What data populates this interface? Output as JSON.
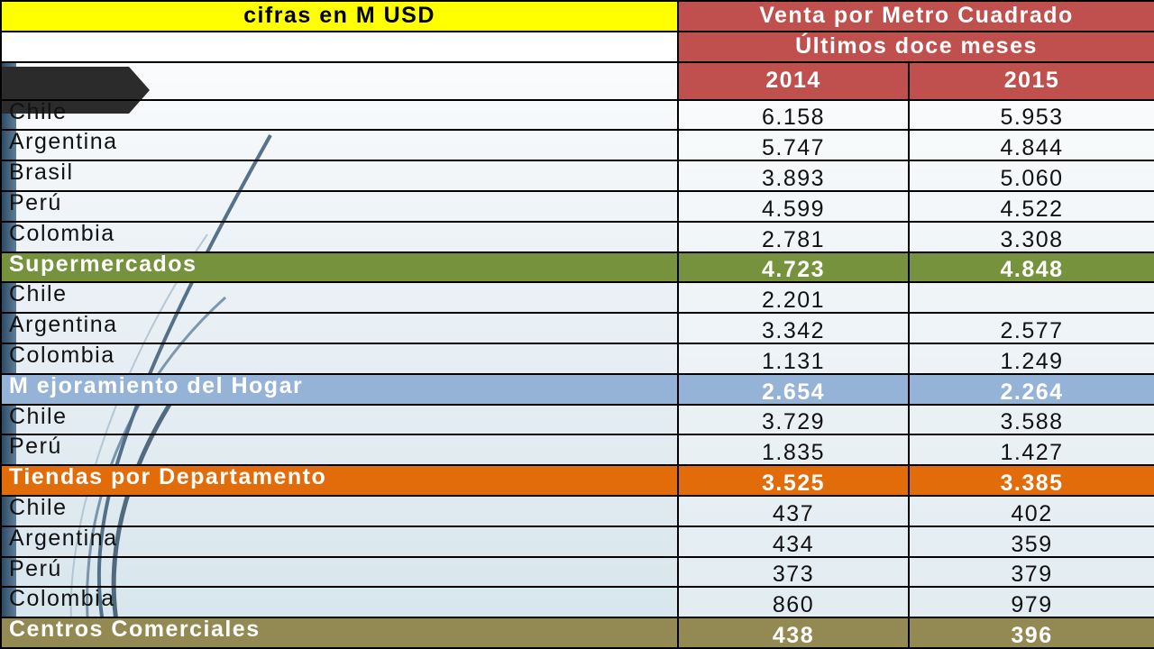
{
  "header": {
    "units_label": "cifras en M USD",
    "title_line1": "Venta por Metro Cuadrado",
    "title_line2": "Últimos doce meses",
    "year_a": "2014",
    "year_b": "2015"
  },
  "colors": {
    "header_yellow": "#ffff00",
    "header_red": "#c0504d",
    "supermercados": "#76923c",
    "mejoramiento": "#95b3d7",
    "tiendas": "#e36c0a",
    "centros": "#938953"
  },
  "rows": [
    {
      "name": "Chile",
      "v2014": "6.158",
      "v2015": "5.953",
      "kind": "data"
    },
    {
      "name": "Argentina",
      "v2014": "5.747",
      "v2015": "4.844",
      "kind": "data"
    },
    {
      "name": "Brasil",
      "v2014": "3.893",
      "v2015": "5.060",
      "kind": "data"
    },
    {
      "name": "Perú",
      "v2014": "4.599",
      "v2015": "4.522",
      "kind": "data"
    },
    {
      "name": "Colombia",
      "v2014": "2.781",
      "v2015": "3.308",
      "kind": "data"
    },
    {
      "name": "Supermercados",
      "v2014": "4.723",
      "v2015": "4.848",
      "kind": "total",
      "color": "#76923c"
    },
    {
      "name": "Chile",
      "v2014": "2.201",
      "v2015": "",
      "kind": "data"
    },
    {
      "name": "Argentina",
      "v2014": "3.342",
      "v2015": "2.577",
      "kind": "data"
    },
    {
      "name": "Colombia",
      "v2014": "1.131",
      "v2015": "1.249",
      "kind": "data"
    },
    {
      "name": "M ejoramiento del Hogar",
      "v2014": "2.654",
      "v2015": "2.264",
      "kind": "total",
      "color": "#95b3d7"
    },
    {
      "name": "Chile",
      "v2014": "3.729",
      "v2015": "3.588",
      "kind": "data"
    },
    {
      "name": "Perú",
      "v2014": "1.835",
      "v2015": "1.427",
      "kind": "data"
    },
    {
      "name": "Tiendas por Departamento",
      "v2014": "3.525",
      "v2015": "3.385",
      "kind": "total",
      "color": "#e36c0a"
    },
    {
      "name": "Chile",
      "v2014": "437",
      "v2015": "402",
      "kind": "data"
    },
    {
      "name": "Argentina",
      "v2014": "434",
      "v2015": "359",
      "kind": "data"
    },
    {
      "name": "Perú",
      "v2014": "373",
      "v2015": "379",
      "kind": "data"
    },
    {
      "name": "Colombia",
      "v2014": "860",
      "v2015": "979",
      "kind": "data"
    },
    {
      "name": "Centros Comerciales",
      "v2014": "438",
      "v2015": "396",
      "kind": "total",
      "color": "#938953"
    }
  ]
}
